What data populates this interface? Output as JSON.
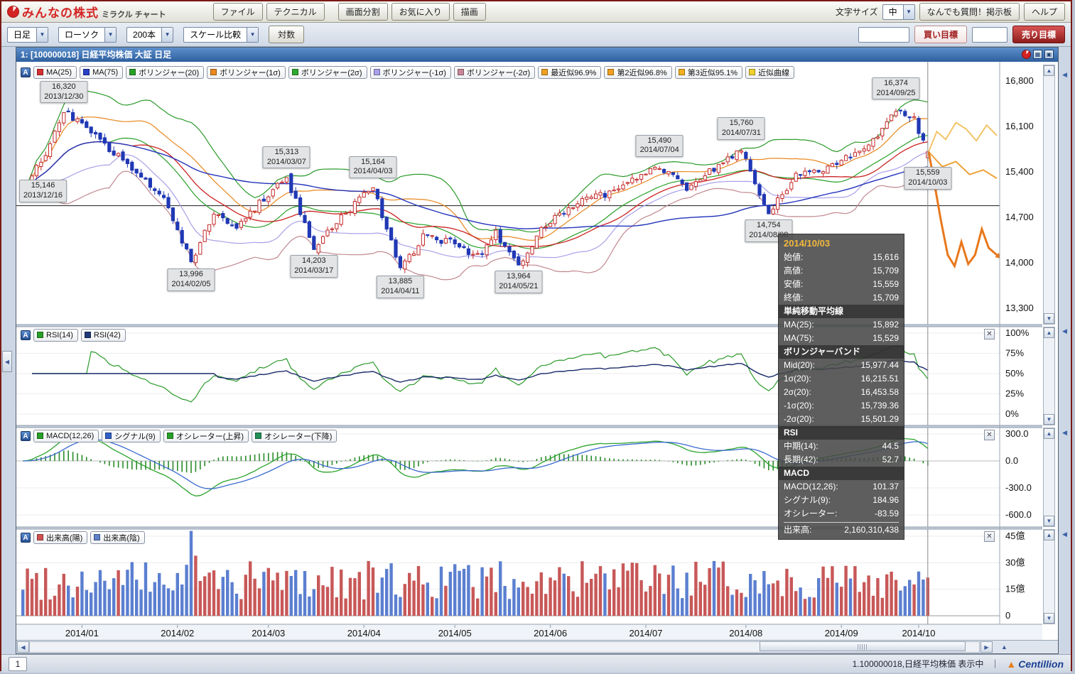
{
  "app": {
    "logo_text": "みんなの株式",
    "logo_sub": "ミラクル チャート",
    "menu": [
      "ファイル",
      "テクニカル",
      "画面分割",
      "お気に入り",
      "描画"
    ],
    "font_size_label": "文字サイズ",
    "font_size_value": "中",
    "qa_button": "なんでも質問！掲示板",
    "help_button": "ヘルプ"
  },
  "toolbar": {
    "dropdowns": [
      {
        "label": "日足"
      },
      {
        "label": "ローソク"
      },
      {
        "label": "200本"
      },
      {
        "label": "スケール比較"
      }
    ],
    "log_button": "対数",
    "buy_target": "買い目標",
    "sell_target": "売り目標"
  },
  "chart_window": {
    "title": "1:  [100000018] 日経平均株価 大証 日足"
  },
  "panels": {
    "main": {
      "toggles": [
        {
          "label": "MA(25)",
          "color": "#d43030"
        },
        {
          "label": "MA(75)",
          "color": "#2840c8"
        },
        {
          "label": "ボリンジャー(20)",
          "color": "#28a028"
        },
        {
          "label": "ボリンジャー(1σ)",
          "color": "#e88820"
        },
        {
          "label": "ボリンジャー(2σ)",
          "color": "#30a830"
        },
        {
          "label": "ボリンジャー(-1σ)",
          "color": "#a8a0e8"
        },
        {
          "label": "ボリンジャー(-2σ)",
          "color": "#c88898"
        },
        {
          "label": "最近似96.9%",
          "color": "#f0a020"
        },
        {
          "label": "第2近似96.8%",
          "color": "#f0a020"
        },
        {
          "label": "第3近似95.1%",
          "color": "#f0b020"
        },
        {
          "label": "近似曲線",
          "color": "#f0d030"
        }
      ]
    },
    "rsi": {
      "toggles": [
        {
          "label": "RSI(14)",
          "color": "#28a028"
        },
        {
          "label": "RSI(42)",
          "color": "#203878"
        }
      ]
    },
    "macd": {
      "toggles": [
        {
          "label": "MACD(12,26)",
          "color": "#28a028"
        },
        {
          "label": "シグナル(9)",
          "color": "#3060c8"
        },
        {
          "label": "オシレーター(上昇)",
          "color": "#28a028"
        },
        {
          "label": "オシレーター(下降)",
          "color": "#209058"
        }
      ]
    },
    "volume": {
      "toggles": [
        {
          "label": "出来高(陽)",
          "color": "#d05050"
        },
        {
          "label": "出来高(陰)",
          "color": "#6080c8"
        }
      ]
    }
  },
  "annotations": [
    {
      "value": "16,320",
      "date": "2013/12/30",
      "i": 9,
      "price": 16320,
      "placement": "above"
    },
    {
      "value": "15,146",
      "date": "2013/12/16",
      "i": 0,
      "price": 15146,
      "placement": "left"
    },
    {
      "value": "13,996",
      "date": "2014/02/05",
      "i": 37,
      "price": 13996,
      "placement": "below"
    },
    {
      "value": "15,313",
      "date": "2014/03/07",
      "i": 58,
      "price": 15313,
      "placement": "above"
    },
    {
      "value": "14,203",
      "date": "2014/03/17",
      "i": 64,
      "price": 14203,
      "placement": "below"
    },
    {
      "value": "15,164",
      "date": "2014/04/03",
      "i": 77,
      "price": 15164,
      "placement": "above"
    },
    {
      "value": "13,885",
      "date": "2014/04/11",
      "i": 83,
      "price": 13885,
      "placement": "below"
    },
    {
      "value": "13,964",
      "date": "2014/05/21",
      "i": 109,
      "price": 13964,
      "placement": "below"
    },
    {
      "value": "15,490",
      "date": "2014/07/04",
      "i": 140,
      "price": 15490,
      "placement": "above"
    },
    {
      "value": "15,760",
      "date": "2014/07/31",
      "i": 158,
      "price": 15760,
      "placement": "above"
    },
    {
      "value": "14,754",
      "date": "2014/08/08",
      "i": 164,
      "price": 14754,
      "placement": "below"
    },
    {
      "value": "16,374",
      "date": "2014/09/25",
      "i": 192,
      "price": 16374,
      "placement": "above"
    },
    {
      "value": "15,559",
      "date": "2014/10/03",
      "i": 199,
      "price": 15559,
      "placement": "below"
    }
  ],
  "tooltip": {
    "date": "2014/10/03",
    "sections": [
      {
        "rows": [
          [
            "始値:",
            "15,616"
          ],
          [
            "高値:",
            "15,709"
          ],
          [
            "安値:",
            "15,559"
          ],
          [
            "終値:",
            "15,709"
          ]
        ]
      },
      {
        "header": "単純移動平均線",
        "rows": [
          [
            "MA(25):",
            "15,892"
          ],
          [
            "MA(75):",
            "15,529"
          ]
        ]
      },
      {
        "header": "ボリンジャーバンド",
        "rows": [
          [
            "Mid(20):",
            "15,977.44"
          ],
          [
            "1σ(20):",
            "16,215.51"
          ],
          [
            "2σ(20):",
            "16,453.58"
          ],
          [
            "-1σ(20):",
            "15,739.36"
          ],
          [
            "-2σ(20):",
            "15,501.29"
          ]
        ]
      },
      {
        "header": "RSI",
        "rows": [
          [
            "中期(14):",
            "44.5"
          ],
          [
            "長期(42):",
            "52.7"
          ]
        ]
      },
      {
        "header": "MACD",
        "rows": [
          [
            "MACD(12,26):",
            "101.37"
          ],
          [
            "シグナル(9):",
            "184.96"
          ],
          [
            "オシレーター:",
            "-83.59"
          ]
        ]
      },
      {
        "rows": [
          [
            "出来高:",
            "2,160,310,438"
          ]
        ],
        "topline": true
      }
    ]
  },
  "chart_data": {
    "type": "candlestick",
    "symbol": "日経平均株価",
    "bar_count": 200,
    "y_ticks_main": [
      {
        "v": 16800,
        "label": "16,800"
      },
      {
        "v": 16100,
        "label": "16,100"
      },
      {
        "v": 15400,
        "label": "15,400"
      },
      {
        "v": 14700,
        "label": "14,700"
      },
      {
        "v": 14000,
        "label": "14,000"
      },
      {
        "v": 13300,
        "label": "13,300"
      }
    ],
    "y_ticks_rsi": [
      {
        "v": 100,
        "label": "100%"
      },
      {
        "v": 75,
        "label": "75%"
      },
      {
        "v": 50,
        "label": "50%"
      },
      {
        "v": 25,
        "label": "25%"
      },
      {
        "v": 0,
        "label": "0%"
      }
    ],
    "y_ticks_macd": [
      {
        "v": 300,
        "label": "300.0"
      },
      {
        "v": 0,
        "label": "0.0"
      },
      {
        "v": -300,
        "label": "-300.0"
      },
      {
        "v": -600,
        "label": "-600.0"
      }
    ],
    "y_ticks_vol": [
      {
        "v": 45,
        "label": "45億"
      },
      {
        "v": 30,
        "label": "30億"
      },
      {
        "v": 15,
        "label": "15億"
      },
      {
        "v": 0,
        "label": "0"
      }
    ],
    "month_ticks": [
      {
        "i": 13,
        "label": "2014/01"
      },
      {
        "i": 34,
        "label": "2014/02"
      },
      {
        "i": 54,
        "label": "2014/03"
      },
      {
        "i": 75,
        "label": "2014/04"
      },
      {
        "i": 95,
        "label": "2014/05"
      },
      {
        "i": 116,
        "label": "2014/06"
      },
      {
        "i": 137,
        "label": "2014/07"
      },
      {
        "i": 159,
        "label": "2014/08"
      },
      {
        "i": 180,
        "label": "2014/09"
      },
      {
        "i": 197,
        "label": "2014/10"
      }
    ],
    "reference_line_price": 14880,
    "price_anchors": [
      {
        "i": 0,
        "price": 15146,
        "type": "low"
      },
      {
        "i": 5,
        "price": 15650,
        "type": "mid"
      },
      {
        "i": 9,
        "price": 16320,
        "type": "high"
      },
      {
        "i": 13,
        "price": 16150,
        "type": "mid"
      },
      {
        "i": 20,
        "price": 15700,
        "type": "mid"
      },
      {
        "i": 26,
        "price": 15300,
        "type": "mid"
      },
      {
        "i": 31,
        "price": 15000,
        "type": "mid"
      },
      {
        "i": 37,
        "price": 13996,
        "type": "low"
      },
      {
        "i": 42,
        "price": 14750,
        "type": "mid"
      },
      {
        "i": 47,
        "price": 14550,
        "type": "mid"
      },
      {
        "i": 53,
        "price": 15000,
        "type": "mid"
      },
      {
        "i": 58,
        "price": 15313,
        "type": "high"
      },
      {
        "i": 64,
        "price": 14203,
        "type": "low"
      },
      {
        "i": 70,
        "price": 14700,
        "type": "mid"
      },
      {
        "i": 77,
        "price": 15164,
        "type": "high"
      },
      {
        "i": 83,
        "price": 13885,
        "type": "low"
      },
      {
        "i": 88,
        "price": 14400,
        "type": "mid"
      },
      {
        "i": 95,
        "price": 14300,
        "type": "mid"
      },
      {
        "i": 100,
        "price": 14100,
        "type": "mid"
      },
      {
        "i": 104,
        "price": 14450,
        "type": "mid"
      },
      {
        "i": 109,
        "price": 13964,
        "type": "low"
      },
      {
        "i": 115,
        "price": 14600,
        "type": "mid"
      },
      {
        "i": 122,
        "price": 14950,
        "type": "mid"
      },
      {
        "i": 130,
        "price": 15100,
        "type": "mid"
      },
      {
        "i": 140,
        "price": 15490,
        "type": "high"
      },
      {
        "i": 146,
        "price": 15150,
        "type": "mid"
      },
      {
        "i": 152,
        "price": 15450,
        "type": "mid"
      },
      {
        "i": 158,
        "price": 15760,
        "type": "high"
      },
      {
        "i": 164,
        "price": 14754,
        "type": "low"
      },
      {
        "i": 170,
        "price": 15350,
        "type": "mid"
      },
      {
        "i": 176,
        "price": 15450,
        "type": "mid"
      },
      {
        "i": 182,
        "price": 15650,
        "type": "mid"
      },
      {
        "i": 188,
        "price": 15950,
        "type": "mid"
      },
      {
        "i": 192,
        "price": 16374,
        "type": "high"
      },
      {
        "i": 196,
        "price": 16200,
        "type": "mid"
      },
      {
        "i": 199,
        "price": 15709,
        "type": "close"
      }
    ],
    "last_candle": {
      "open": 15616,
      "high": 15709,
      "low": 15559,
      "close": 15709
    },
    "projections": [
      {
        "name": "最近似96.9%",
        "color": "#f2c468",
        "width": 2,
        "arrow": false,
        "points": [
          [
            0,
            15709
          ],
          [
            0.12,
            16020
          ],
          [
            0.25,
            15900
          ],
          [
            0.4,
            16160
          ],
          [
            0.55,
            16060
          ],
          [
            0.7,
            15880
          ],
          [
            0.85,
            16120
          ],
          [
            1,
            15960
          ]
        ]
      },
      {
        "name": "第2近似96.8%",
        "color": "#efa23a",
        "width": 2,
        "arrow": false,
        "points": [
          [
            0,
            15709
          ],
          [
            0.2,
            15480
          ],
          [
            0.4,
            15560
          ],
          [
            0.6,
            15360
          ],
          [
            0.8,
            15430
          ],
          [
            1,
            15300
          ]
        ]
      },
      {
        "name": "第3近似95.1%",
        "color": "#e8781c",
        "width": 3,
        "arrow": true,
        "points": [
          [
            0,
            15709
          ],
          [
            0.08,
            15250
          ],
          [
            0.18,
            14650
          ],
          [
            0.28,
            14120
          ],
          [
            0.38,
            13950
          ],
          [
            0.48,
            14320
          ],
          [
            0.58,
            13980
          ],
          [
            0.68,
            14120
          ],
          [
            0.78,
            14520
          ],
          [
            0.88,
            14230
          ],
          [
            1,
            14120
          ]
        ]
      }
    ],
    "rsi_end": {
      "rsi14": 44.5,
      "rsi42": 52.7
    },
    "macd_end": {
      "macd": 101.37,
      "signal": 184.96,
      "oscillator": -83.59
    },
    "volume_last": 2160310438,
    "volume_spike": {
      "i": 37,
      "oku": 48
    }
  },
  "statusbar": {
    "page": "1",
    "status": "1.100000018,日経平均株価 表示中",
    "separator": "｜",
    "brand": "Centillion"
  }
}
